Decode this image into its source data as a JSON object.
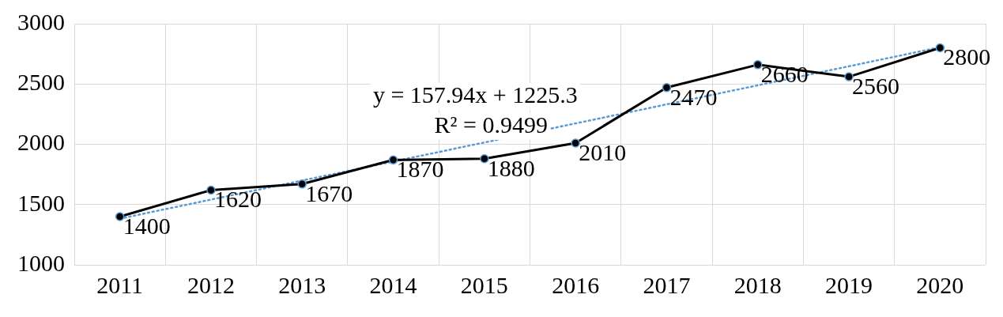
{
  "chart_data": {
    "type": "line",
    "categories": [
      "2011",
      "2012",
      "2013",
      "2014",
      "2015",
      "2016",
      "2017",
      "2018",
      "2019",
      "2020"
    ],
    "series": [
      {
        "color": "#000000",
        "values": [
          1400,
          1620,
          1670,
          1870,
          1880,
          2010,
          2470,
          2660,
          2560,
          2800
        ],
        "value_labels": [
          "1400",
          "1620",
          "1670",
          "1870",
          "1880",
          "2010",
          "2470",
          "2660",
          "2560",
          "2800"
        ],
        "marker": "circle"
      },
      {
        "color": "#5b9bd5",
        "values": [
          1383,
          1541,
          1699,
          1857,
          2015,
          2173,
          2331,
          2489,
          2647,
          2805
        ],
        "marker": "none",
        "line_style": "dotted"
      }
    ],
    "ylim": [
      1000,
      3000
    ],
    "yticks": [
      1000,
      1500,
      2000,
      2500,
      3000
    ],
    "grid": true,
    "legend": false,
    "annotations": [
      "y = 157.94x + 1225.3",
      "R² = 0.9499"
    ]
  }
}
